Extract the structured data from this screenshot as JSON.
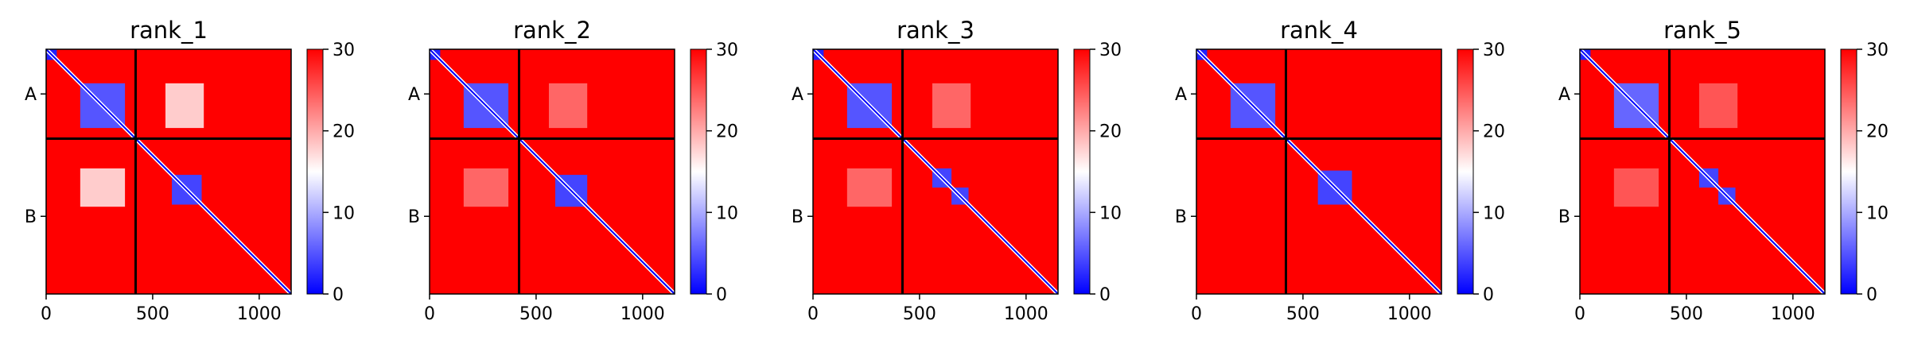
{
  "chart_data": [
    {
      "type": "heatmap",
      "title": "rank_1",
      "xlim": [
        0,
        1150
      ],
      "xticks": [
        0,
        500,
        1000
      ],
      "chain_labels": [
        "A",
        "B"
      ],
      "chain_boundary": 420,
      "colorbar": {
        "vmin": 0,
        "vmax": 30,
        "ticks": [
          0,
          10,
          20,
          30
        ],
        "colors": [
          "#0000ff",
          "#ffffff",
          "#ff0000"
        ]
      },
      "low_error_blocks": [
        {
          "x": [
            0,
            50
          ],
          "y": [
            0,
            50
          ],
          "level": 2
        },
        {
          "x": [
            160,
            370
          ],
          "y": [
            160,
            370
          ],
          "level": 5
        },
        {
          "x": [
            590,
            730
          ],
          "y": [
            590,
            730
          ],
          "level": 4
        },
        {
          "x": [
            560,
            740
          ],
          "y": [
            160,
            370
          ],
          "level": 18
        },
        {
          "x": [
            160,
            370
          ],
          "y": [
            560,
            740
          ],
          "level": 18
        }
      ]
    },
    {
      "type": "heatmap",
      "title": "rank_2",
      "xlim": [
        0,
        1150
      ],
      "xticks": [
        0,
        500,
        1000
      ],
      "chain_labels": [
        "A",
        "B"
      ],
      "chain_boundary": 420,
      "colorbar": {
        "vmin": 0,
        "vmax": 30,
        "ticks": [
          0,
          10,
          20,
          30
        ],
        "colors": [
          "#0000ff",
          "#ffffff",
          "#ff0000"
        ]
      },
      "low_error_blocks": [
        {
          "x": [
            0,
            50
          ],
          "y": [
            0,
            50
          ],
          "level": 2
        },
        {
          "x": [
            160,
            370
          ],
          "y": [
            160,
            370
          ],
          "level": 5
        },
        {
          "x": [
            590,
            740
          ],
          "y": [
            590,
            740
          ],
          "level": 4
        },
        {
          "x": [
            560,
            740
          ],
          "y": [
            160,
            370
          ],
          "level": 24
        },
        {
          "x": [
            160,
            370
          ],
          "y": [
            560,
            740
          ],
          "level": 24
        }
      ]
    },
    {
      "type": "heatmap",
      "title": "rank_3",
      "xlim": [
        0,
        1150
      ],
      "xticks": [
        0,
        500,
        1000
      ],
      "chain_labels": [
        "A",
        "B"
      ],
      "chain_boundary": 420,
      "colorbar": {
        "vmin": 0,
        "vmax": 30,
        "ticks": [
          0,
          10,
          20,
          30
        ],
        "colors": [
          "#0000ff",
          "#ffffff",
          "#ff0000"
        ]
      },
      "low_error_blocks": [
        {
          "x": [
            0,
            50
          ],
          "y": [
            0,
            50
          ],
          "level": 2
        },
        {
          "x": [
            160,
            370
          ],
          "y": [
            160,
            370
          ],
          "level": 5
        },
        {
          "x": [
            560,
            650
          ],
          "y": [
            560,
            650
          ],
          "level": 4
        },
        {
          "x": [
            650,
            730
          ],
          "y": [
            650,
            730
          ],
          "level": 4
        },
        {
          "x": [
            560,
            740
          ],
          "y": [
            160,
            370
          ],
          "level": 24
        },
        {
          "x": [
            160,
            370
          ],
          "y": [
            560,
            740
          ],
          "level": 24
        }
      ]
    },
    {
      "type": "heatmap",
      "title": "rank_4",
      "xlim": [
        0,
        1150
      ],
      "xticks": [
        0,
        500,
        1000
      ],
      "chain_labels": [
        "A",
        "B"
      ],
      "chain_boundary": 420,
      "colorbar": {
        "vmin": 0,
        "vmax": 30,
        "ticks": [
          0,
          10,
          20,
          30
        ],
        "colors": [
          "#0000ff",
          "#ffffff",
          "#ff0000"
        ]
      },
      "low_error_blocks": [
        {
          "x": [
            0,
            50
          ],
          "y": [
            0,
            50
          ],
          "level": 2
        },
        {
          "x": [
            160,
            370
          ],
          "y": [
            160,
            370
          ],
          "level": 5
        },
        {
          "x": [
            570,
            730
          ],
          "y": [
            570,
            730
          ],
          "level": 4
        }
      ]
    },
    {
      "type": "heatmap",
      "title": "rank_5",
      "xlim": [
        0,
        1150
      ],
      "xticks": [
        0,
        500,
        1000
      ],
      "chain_labels": [
        "A",
        "B"
      ],
      "chain_boundary": 420,
      "colorbar": {
        "vmin": 0,
        "vmax": 30,
        "ticks": [
          0,
          10,
          20,
          30
        ],
        "colors": [
          "#0000ff",
          "#ffffff",
          "#ff0000"
        ]
      },
      "low_error_blocks": [
        {
          "x": [
            0,
            50
          ],
          "y": [
            0,
            50
          ],
          "level": 2
        },
        {
          "x": [
            160,
            370
          ],
          "y": [
            160,
            370
          ],
          "level": 6
        },
        {
          "x": [
            560,
            650
          ],
          "y": [
            560,
            650
          ],
          "level": 4
        },
        {
          "x": [
            650,
            730
          ],
          "y": [
            650,
            730
          ],
          "level": 4
        },
        {
          "x": [
            560,
            740
          ],
          "y": [
            160,
            370
          ],
          "level": 25
        },
        {
          "x": [
            160,
            370
          ],
          "y": [
            560,
            740
          ],
          "level": 25
        }
      ]
    }
  ]
}
